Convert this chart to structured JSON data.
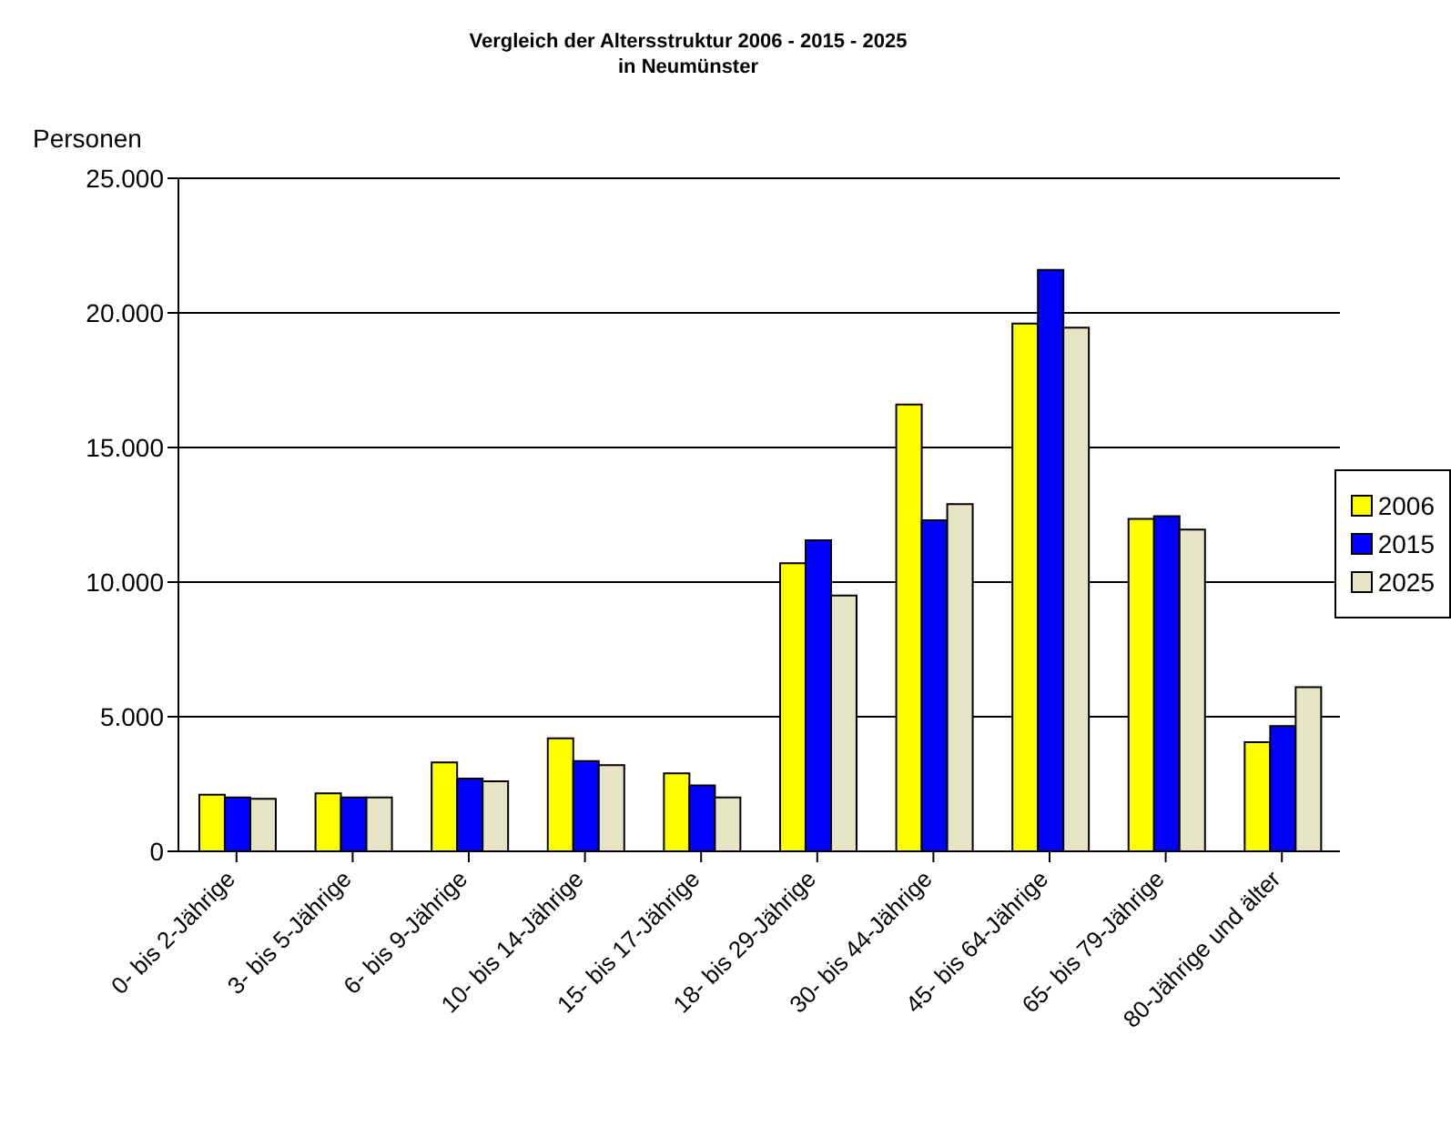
{
  "chart_data": {
    "type": "bar",
    "title": "Vergleich der Altersstruktur 2006 - 2015 - 2025",
    "subtitle": "in Neumünster",
    "ylabel": "Personen",
    "categories": [
      "0- bis 2-Jährige",
      "3- bis 5-Jährige",
      "6- bis 9-Jährige",
      "10- bis 14-Jährige",
      "15- bis 17-Jährige",
      "18- bis 29-Jährige",
      "30- bis 44-Jährige",
      "45- bis 64-Jährige",
      "65- bis 79-Jährige",
      "80-Jährige und älter"
    ],
    "series": [
      {
        "name": "2006",
        "color": "#ffff00",
        "values": [
          2100,
          2150,
          3300,
          4200,
          2900,
          10700,
          16600,
          19600,
          12350,
          4050
        ]
      },
      {
        "name": "2015",
        "color": "#0000ff",
        "values": [
          2000,
          2000,
          2700,
          3350,
          2450,
          11550,
          12300,
          21600,
          12450,
          4650
        ]
      },
      {
        "name": "2025",
        "color": "#e6e4c4",
        "values": [
          1950,
          2000,
          2600,
          3200,
          2000,
          9500,
          12900,
          19450,
          11950,
          6100
        ]
      }
    ],
    "ylim": [
      0,
      25000
    ],
    "yticks": [
      {
        "value": 0,
        "label": "0"
      },
      {
        "value": 5000,
        "label": "5.000"
      },
      {
        "value": 10000,
        "label": "10.000"
      },
      {
        "value": 15000,
        "label": "15.000"
      },
      {
        "value": 20000,
        "label": "20.000"
      },
      {
        "value": 25000,
        "label": "25.000"
      }
    ],
    "grid": "y",
    "legend": "right"
  }
}
